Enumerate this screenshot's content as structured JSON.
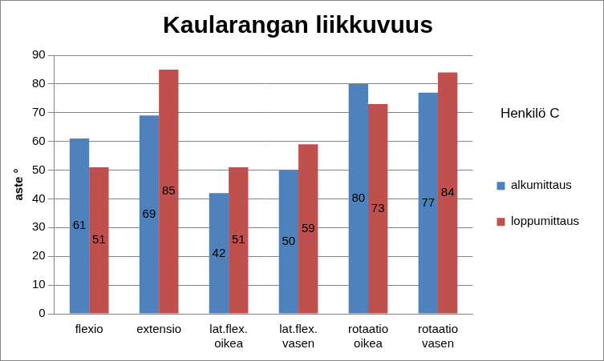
{
  "chart_data": {
    "type": "bar",
    "title": "Kaularangan liikkuvuus",
    "y_label": "aste °",
    "annotations": [
      "Henkilö C"
    ],
    "categories": [
      "flexio",
      "extensio",
      "lat.flex. oikea",
      "lat.flex. vasen",
      "rotaatio oikea",
      "rotaatio vasen"
    ],
    "series": [
      {
        "name": "alkumittaus",
        "color": "#4f81bd",
        "values": [
          61,
          69,
          42,
          50,
          80,
          77
        ]
      },
      {
        "name": "loppumittaus",
        "color": "#c0504d",
        "values": [
          51,
          85,
          51,
          59,
          73,
          84
        ]
      }
    ],
    "ylim": [
      0,
      90
    ],
    "yticks": [
      0,
      10,
      20,
      30,
      40,
      50,
      60,
      70,
      80,
      90
    ],
    "grid": true,
    "legend": "right",
    "data_labels": true
  }
}
